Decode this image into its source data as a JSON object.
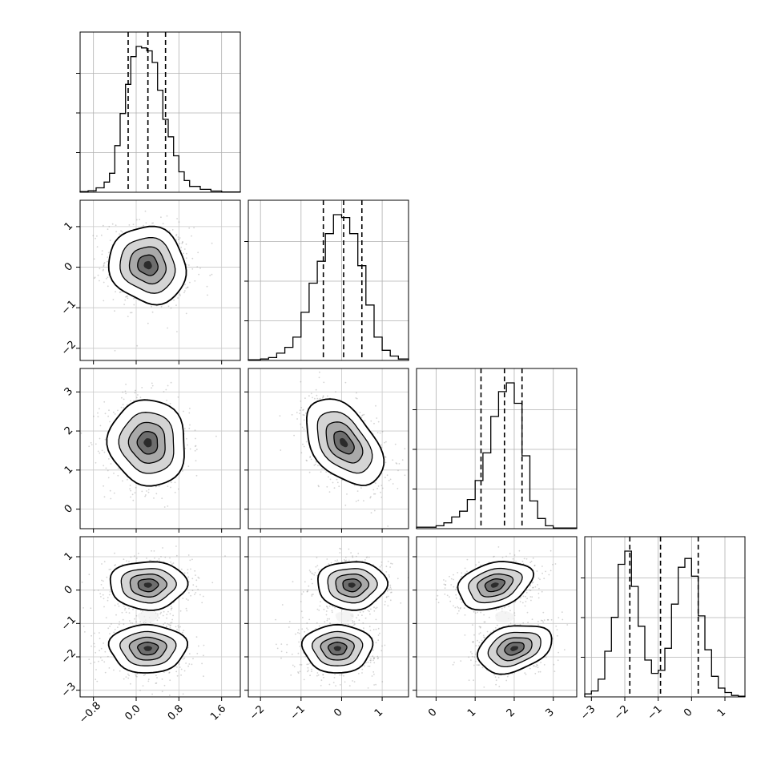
{
  "chart_data": {
    "type": "corner",
    "parameters": 4,
    "title": "",
    "axis_labels": [
      "",
      "",
      "",
      ""
    ],
    "ranges": [
      [
        -1.05,
        1.95
      ],
      [
        -2.3,
        1.65
      ],
      [
        -0.5,
        3.6
      ],
      [
        -3.2,
        1.6
      ]
    ],
    "ticks": [
      [
        "−0.8",
        "0.0",
        "0.8",
        "1.6"
      ],
      [
        "−2",
        "−1",
        "0",
        "1"
      ],
      [
        "0",
        "1",
        "2",
        "3"
      ],
      [
        "−3",
        "−2",
        "−1",
        "0",
        "1"
      ]
    ],
    "tick_values": [
      [
        -0.8,
        0.0,
        0.8,
        1.6
      ],
      [
        -2,
        -1,
        0,
        1
      ],
      [
        0,
        1,
        2,
        3
      ],
      [
        -3,
        -2,
        -1,
        0,
        1
      ]
    ],
    "grid": true,
    "histograms": [
      {
        "param": 0,
        "bins": [
          -1.05,
          -0.9,
          -0.75,
          -0.6,
          -0.5,
          -0.4,
          -0.3,
          -0.2,
          -0.1,
          0.0,
          0.1,
          0.2,
          0.3,
          0.4,
          0.5,
          0.6,
          0.7,
          0.8,
          0.9,
          1.0,
          1.2,
          1.4,
          1.6,
          1.95
        ],
        "counts": [
          0.005,
          0.01,
          0.03,
          0.07,
          0.13,
          0.32,
          0.54,
          0.74,
          0.93,
          1.0,
          0.99,
          0.97,
          0.89,
          0.7,
          0.5,
          0.38,
          0.25,
          0.14,
          0.08,
          0.04,
          0.02,
          0.008,
          0.002
        ],
        "quantiles": [
          -0.15,
          0.22,
          0.55
        ]
      },
      {
        "param": 1,
        "bins": [
          -2.3,
          -2.0,
          -1.8,
          -1.6,
          -1.4,
          -1.2,
          -1.0,
          -0.8,
          -0.6,
          -0.4,
          -0.2,
          0.0,
          0.2,
          0.4,
          0.6,
          0.8,
          1.0,
          1.2,
          1.4,
          1.65
        ],
        "counts": [
          0.005,
          0.01,
          0.02,
          0.05,
          0.09,
          0.16,
          0.33,
          0.53,
          0.68,
          0.87,
          1.0,
          0.98,
          0.87,
          0.65,
          0.38,
          0.16,
          0.07,
          0.03,
          0.01
        ],
        "quantiles": [
          -0.45,
          0.05,
          0.5
        ]
      },
      {
        "param": 2,
        "bins": [
          -0.5,
          0.0,
          0.2,
          0.4,
          0.6,
          0.8,
          1.0,
          1.2,
          1.4,
          1.6,
          1.8,
          2.0,
          2.2,
          2.4,
          2.6,
          2.8,
          3.0,
          3.6
        ],
        "counts": [
          0.01,
          0.02,
          0.04,
          0.08,
          0.12,
          0.2,
          0.33,
          0.52,
          0.77,
          0.94,
          1.0,
          0.86,
          0.5,
          0.19,
          0.07,
          0.02,
          0.005
        ],
        "quantiles": [
          1.15,
          1.75,
          2.2
        ]
      },
      {
        "param": 3,
        "bins": [
          -3.2,
          -3.0,
          -2.8,
          -2.6,
          -2.4,
          -2.2,
          -2.0,
          -1.8,
          -1.6,
          -1.4,
          -1.2,
          -1.0,
          -0.8,
          -0.6,
          -0.4,
          -0.2,
          0.0,
          0.2,
          0.4,
          0.6,
          0.8,
          1.0,
          1.2,
          1.4,
          1.6
        ],
        "counts": [
          0.02,
          0.04,
          0.12,
          0.31,
          0.54,
          0.9,
          0.99,
          0.75,
          0.48,
          0.25,
          0.16,
          0.18,
          0.33,
          0.63,
          0.88,
          0.94,
          0.82,
          0.55,
          0.32,
          0.14,
          0.06,
          0.03,
          0.01,
          0.005
        ],
        "quantiles": [
          -1.85,
          -0.93,
          0.2
        ]
      }
    ],
    "pairs": [
      {
        "x": 0,
        "y": 1,
        "center": [
          0.22,
          0.05
        ],
        "sigma": [
          0.38,
          0.5
        ],
        "corr": -0.1,
        "modes": 1
      },
      {
        "x": 0,
        "y": 2,
        "center": [
          0.22,
          1.7
        ],
        "sigma": [
          0.38,
          0.58
        ],
        "corr": -0.05,
        "modes": 1
      },
      {
        "x": 1,
        "y": 2,
        "center": [
          0.05,
          1.7
        ],
        "sigma": [
          0.5,
          0.58
        ],
        "corr": -0.45,
        "modes": 1
      },
      {
        "x": 0,
        "y": 3,
        "centers": [
          [
            0.22,
            0.15
          ],
          [
            0.22,
            -1.75
          ]
        ],
        "sigma": [
          0.38,
          0.38
        ],
        "corr": 0.0,
        "modes": 2
      },
      {
        "x": 1,
        "y": 3,
        "centers": [
          [
            0.25,
            0.15
          ],
          [
            -0.1,
            -1.75
          ]
        ],
        "sigma": [
          0.45,
          0.38
        ],
        "corr": 0.0,
        "modes": 2
      },
      {
        "x": 2,
        "y": 3,
        "centers": [
          [
            1.5,
            0.15
          ],
          [
            2.0,
            -1.75
          ]
        ],
        "sigma": [
          0.5,
          0.38
        ],
        "corr": 0.3,
        "modes": 2
      }
    ]
  }
}
